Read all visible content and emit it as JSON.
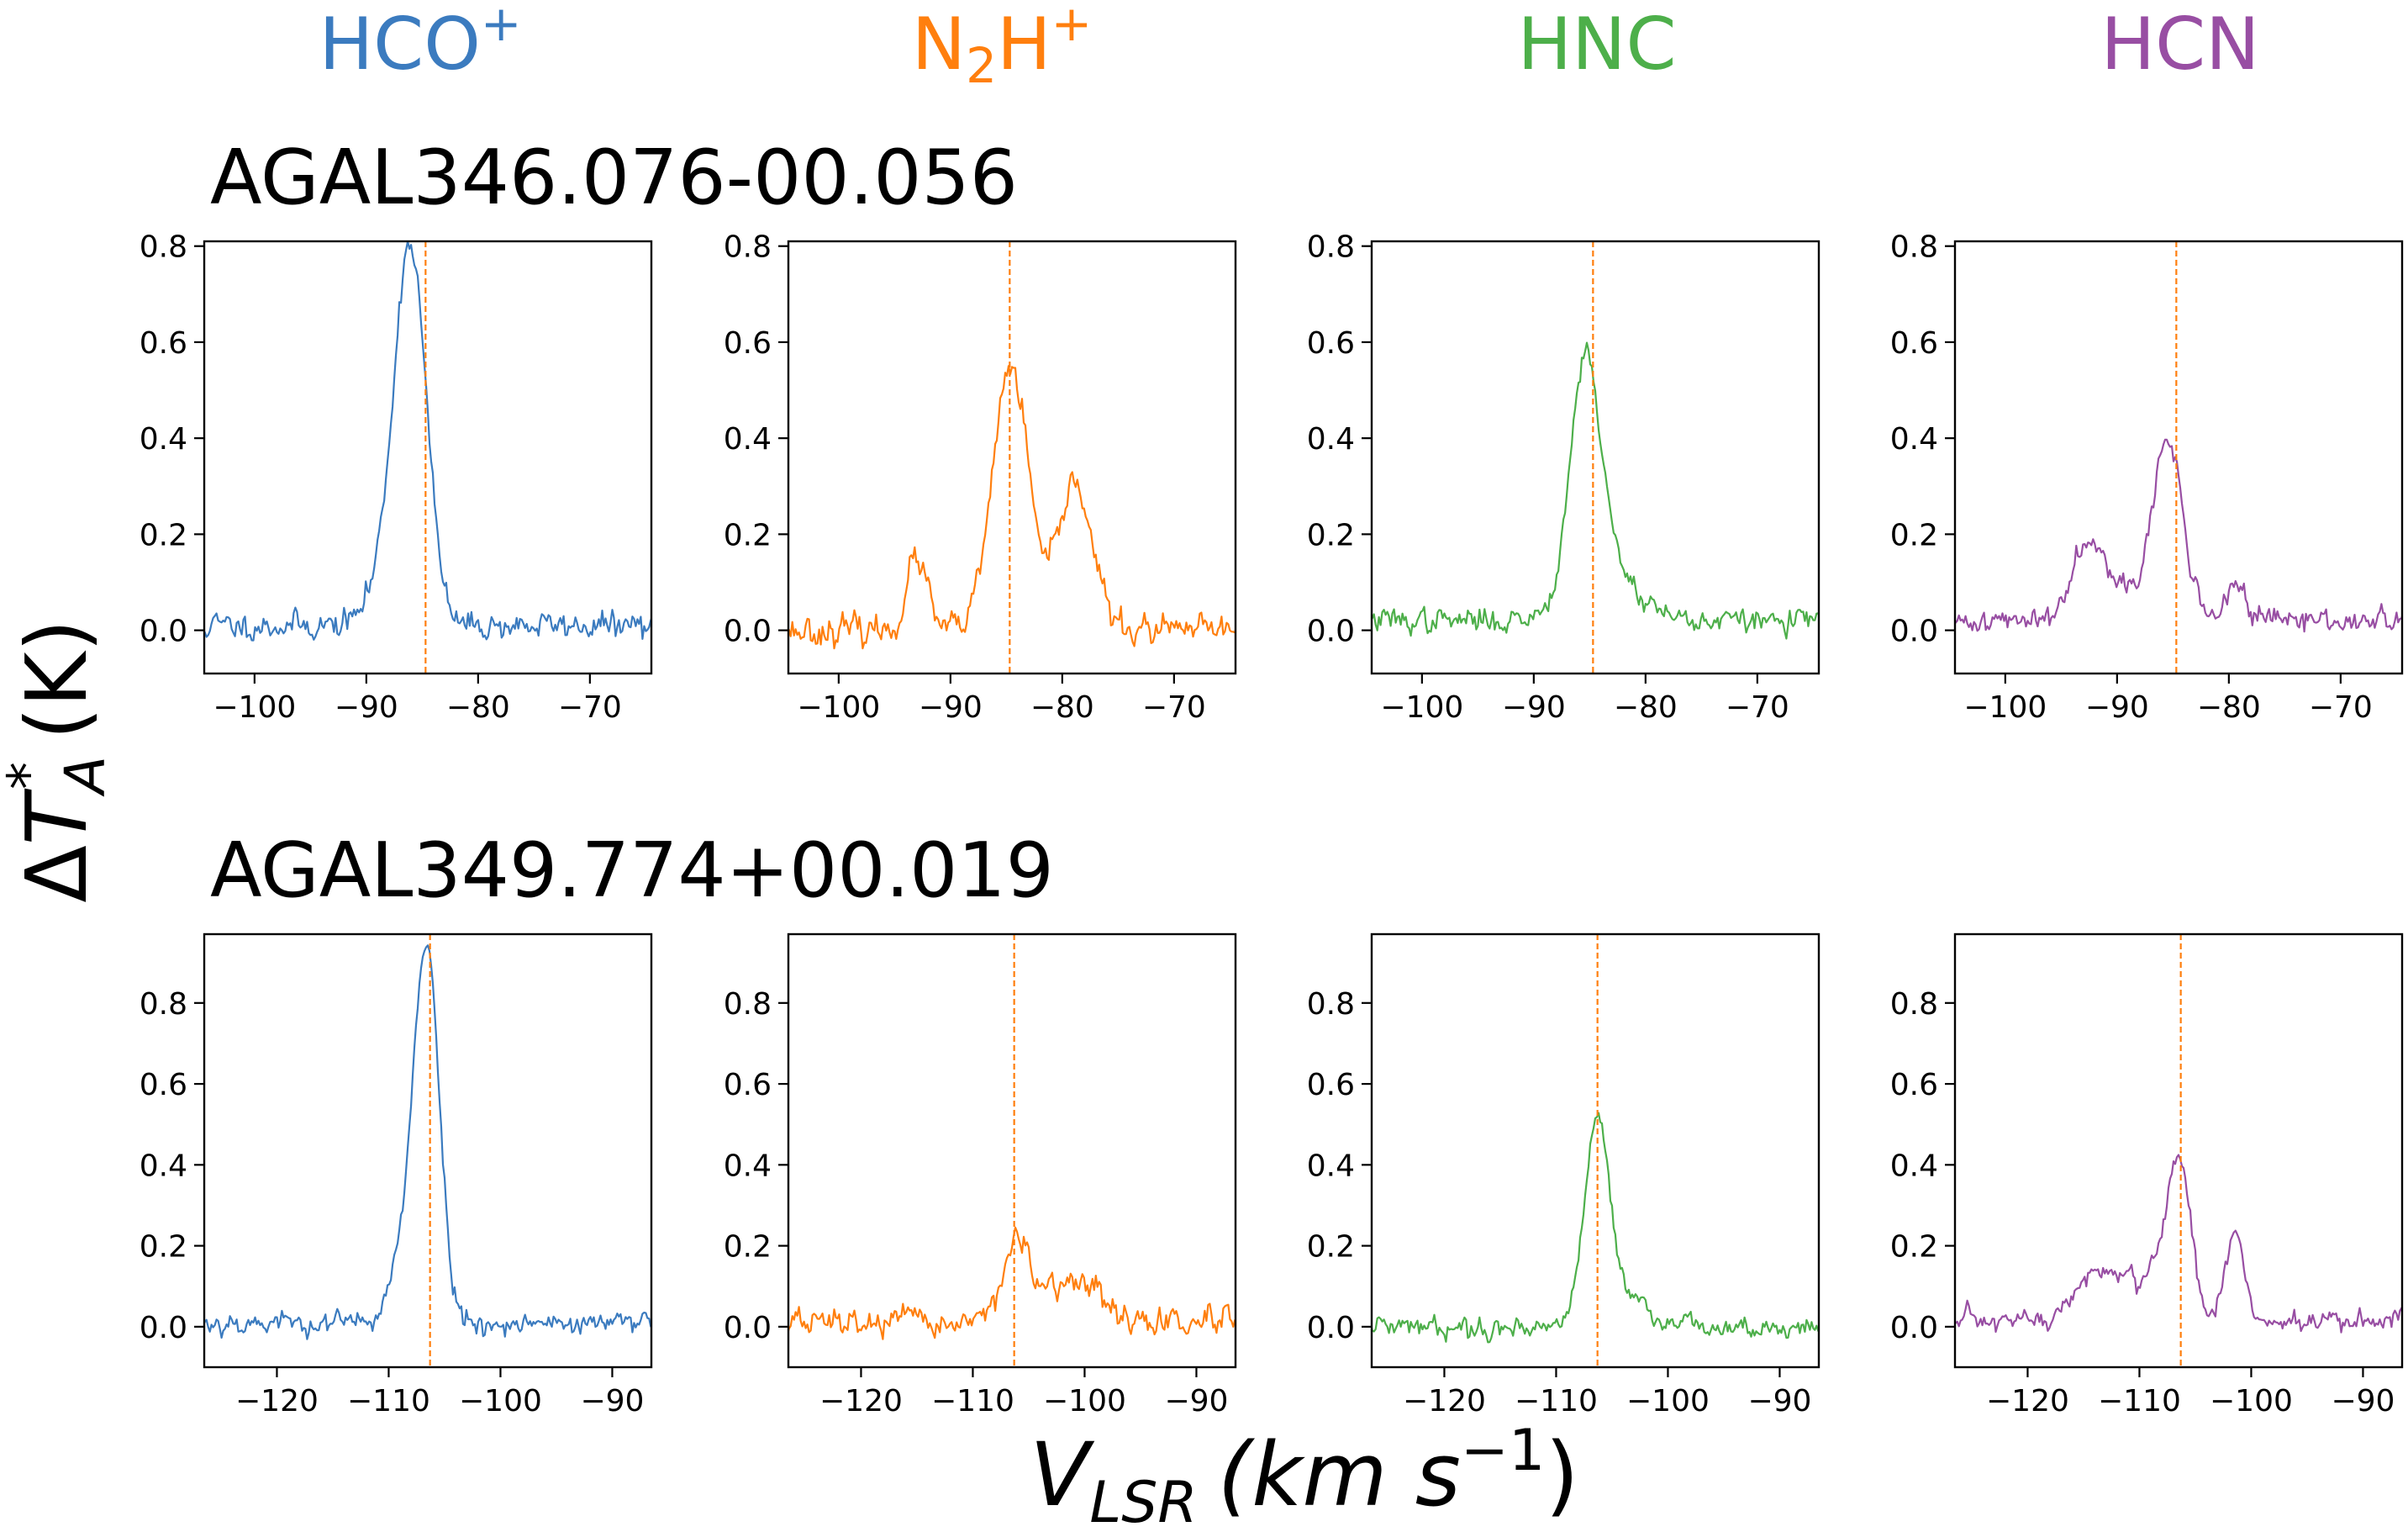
{
  "figure": {
    "column_titles": [
      {
        "text": "HCO",
        "sub": "",
        "sup": "+",
        "color": "#3b7bbf"
      },
      {
        "text": "N",
        "sub": "2",
        "text2": "H",
        "sup": "+",
        "color": "#ff7f0e"
      },
      {
        "text": "HNC",
        "sub": "",
        "sup": "",
        "color": "#4daf4a"
      },
      {
        "text": "HCN",
        "sub": "",
        "sup": "",
        "color": "#984ea3"
      }
    ],
    "row_titles": [
      "AGAL346.076-00.056",
      "AGAL349.774+00.019"
    ],
    "ylabel": {
      "delta": "Δ",
      "T": "T",
      "sub": "A",
      "sup": "*",
      "unit": "(K)"
    },
    "xlabel": {
      "V": "V",
      "sub": "LSR",
      "unit_main": "(km s",
      "unit_sup": "−1",
      "unit_close": ")"
    }
  },
  "chart_data": [
    {
      "type": "line",
      "row": 0,
      "species": "HCO+",
      "color": "#3b7bbf",
      "vline": -84.7,
      "vline_color": "#ff7f0e",
      "xlim": [
        -104.5,
        -64.5
      ],
      "ylim": [
        -0.09,
        0.81
      ],
      "xticks": [
        -100,
        -90,
        -80,
        -70
      ],
      "yticks": [
        0.0,
        0.2,
        0.4,
        0.6,
        0.8
      ],
      "base": 0.01,
      "noise": 0.018,
      "step": 0.15,
      "seed": 11,
      "components": [
        [
          -86.0,
          0.72,
          1.4
        ],
        [
          -87.6,
          0.12,
          1.8
        ]
      ]
    },
    {
      "type": "line",
      "row": 0,
      "species": "N2H+",
      "color": "#ff7f0e",
      "vline": -84.7,
      "vline_color": "#ff7f0e",
      "xlim": [
        -104.5,
        -64.5
      ],
      "ylim": [
        -0.09,
        0.81
      ],
      "xticks": [
        -100,
        -90,
        -80,
        -70
      ],
      "yticks": [
        0.0,
        0.2,
        0.4,
        0.6,
        0.8
      ],
      "base": 0.0,
      "noise": 0.02,
      "step": 0.15,
      "seed": 23,
      "components": [
        [
          -93.0,
          0.15,
          0.9
        ],
        [
          -84.6,
          0.55,
          1.6
        ],
        [
          -78.8,
          0.31,
          1.5
        ]
      ]
    },
    {
      "type": "line",
      "row": 0,
      "species": "HNC",
      "color": "#4daf4a",
      "vline": -84.7,
      "vline_color": "#ff7f0e",
      "xlim": [
        -104.5,
        -64.5
      ],
      "ylim": [
        -0.09,
        0.81
      ],
      "xticks": [
        -100,
        -90,
        -80,
        -70
      ],
      "yticks": [
        0.0,
        0.2,
        0.4,
        0.6,
        0.8
      ],
      "base": 0.02,
      "noise": 0.016,
      "step": 0.15,
      "seed": 37,
      "components": [
        [
          -85.4,
          0.46,
          1.3
        ],
        [
          -83.8,
          0.12,
          2.8
        ]
      ]
    },
    {
      "type": "line",
      "row": 0,
      "species": "HCN",
      "color": "#984ea3",
      "vline": -84.7,
      "vline_color": "#ff7f0e",
      "xlim": [
        -104.5,
        -64.5
      ],
      "ylim": [
        -0.09,
        0.81
      ],
      "xticks": [
        -100,
        -90,
        -80,
        -70
      ],
      "yticks": [
        0.0,
        0.2,
        0.4,
        0.6,
        0.8
      ],
      "base": 0.02,
      "noise": 0.016,
      "step": 0.15,
      "seed": 41,
      "components": [
        [
          -92.5,
          0.16,
          1.5
        ],
        [
          -85.4,
          0.33,
          1.3
        ],
        [
          -79.3,
          0.08,
          0.8
        ],
        [
          -88.0,
          0.06,
          3.0
        ]
      ]
    },
    {
      "type": "line",
      "row": 1,
      "species": "HCO+",
      "color": "#3b7bbf",
      "vline": -106.3,
      "vline_color": "#ff7f0e",
      "xlim": [
        -126.5,
        -86.5
      ],
      "ylim": [
        -0.1,
        0.97
      ],
      "xticks": [
        -120,
        -110,
        -100,
        -90
      ],
      "yticks": [
        0.0,
        0.2,
        0.4,
        0.6,
        0.8
      ],
      "base": 0.01,
      "noise": 0.018,
      "step": 0.15,
      "seed": 53,
      "components": [
        [
          -106.5,
          0.84,
          1.1
        ],
        [
          -108.2,
          0.2,
          1.4
        ]
      ]
    },
    {
      "type": "line",
      "row": 1,
      "species": "N2H+",
      "color": "#ff7f0e",
      "vline": -106.3,
      "vline_color": "#ff7f0e",
      "xlim": [
        -126.5,
        -86.5
      ],
      "ylim": [
        -0.1,
        0.97
      ],
      "xticks": [
        -120,
        -110,
        -100,
        -90
      ],
      "yticks": [
        0.0,
        0.2,
        0.4,
        0.6,
        0.8
      ],
      "base": 0.01,
      "noise": 0.022,
      "step": 0.15,
      "seed": 67,
      "components": [
        [
          -106.2,
          0.17,
          1.3
        ],
        [
          -100.2,
          0.09,
          1.8
        ],
        [
          -103.5,
          0.04,
          2.5
        ]
      ]
    },
    {
      "type": "line",
      "row": 1,
      "species": "HNC",
      "color": "#4daf4a",
      "vline": -106.3,
      "vline_color": "#ff7f0e",
      "xlim": [
        -126.5,
        -86.5
      ],
      "ylim": [
        -0.1,
        0.97
      ],
      "xticks": [
        -120,
        -110,
        -100,
        -90
      ],
      "yticks": [
        0.0,
        0.2,
        0.4,
        0.6,
        0.8
      ],
      "base": 0.0,
      "noise": 0.016,
      "step": 0.15,
      "seed": 79,
      "components": [
        [
          -106.3,
          0.47,
          1.1
        ],
        [
          -104.5,
          0.07,
          2.5
        ]
      ]
    },
    {
      "type": "line",
      "row": 1,
      "species": "HCN",
      "color": "#984ea3",
      "vline": -106.3,
      "vline_color": "#ff7f0e",
      "xlim": [
        -126.5,
        -86.5
      ],
      "ylim": [
        -0.1,
        0.97
      ],
      "xticks": [
        -120,
        -110,
        -100,
        -90
      ],
      "yticks": [
        0.0,
        0.2,
        0.4,
        0.6,
        0.8
      ],
      "base": 0.01,
      "noise": 0.018,
      "step": 0.15,
      "seed": 97,
      "components": [
        [
          -114.0,
          0.12,
          1.8
        ],
        [
          -106.5,
          0.38,
          1.1
        ],
        [
          -101.5,
          0.22,
          0.9
        ],
        [
          -109.5,
          0.1,
          2.0
        ]
      ]
    }
  ]
}
